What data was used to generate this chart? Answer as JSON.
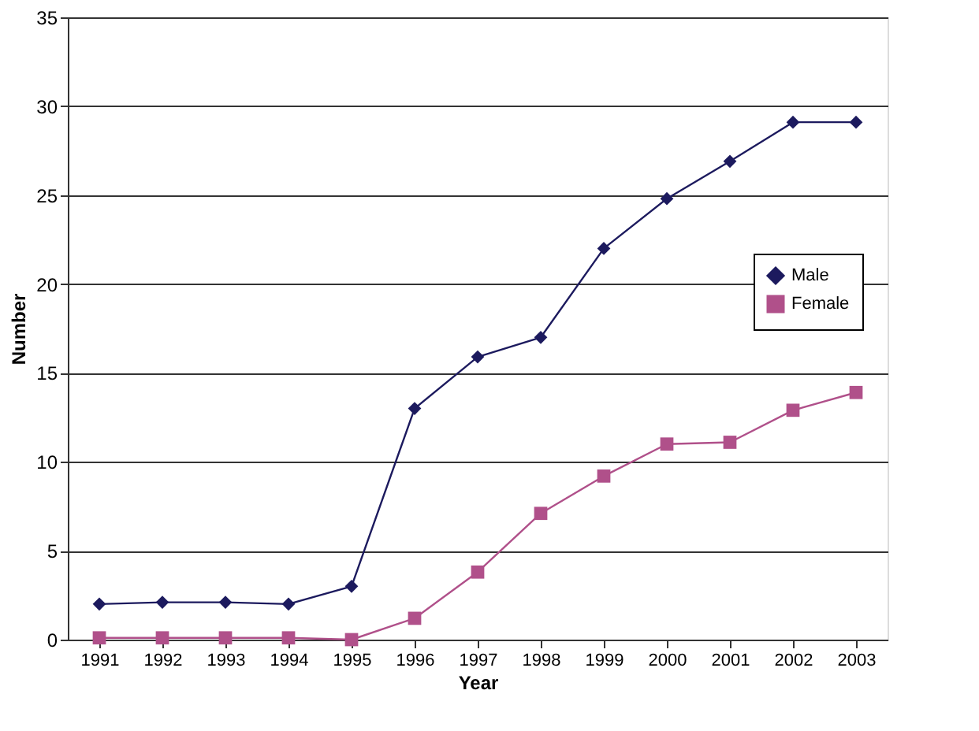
{
  "chart_data": {
    "type": "line",
    "xlabel": "Year",
    "ylabel": "Number",
    "categories": [
      "1991",
      "1992",
      "1993",
      "1994",
      "1995",
      "1996",
      "1997",
      "1998",
      "1999",
      "2000",
      "2001",
      "2002",
      "2003"
    ],
    "series": [
      {
        "name": "Male",
        "color": "#1c1a5e",
        "marker": "diamond",
        "values": [
          2,
          2.1,
          2.1,
          2,
          3,
          13,
          15.9,
          17,
          22,
          24.8,
          26.9,
          29.1,
          29.1
        ]
      },
      {
        "name": "Female",
        "color": "#b0508a",
        "marker": "square",
        "values": [
          0.1,
          0.1,
          0.1,
          0.1,
          0,
          1.2,
          3.8,
          7.1,
          9.2,
          11,
          11.1,
          12.9,
          13.9
        ]
      }
    ],
    "ylim": [
      0,
      35
    ],
    "yticks": [
      0,
      5,
      10,
      15,
      20,
      25,
      30,
      35
    ],
    "grid": "y",
    "legend": "right",
    "line_style": "solid"
  }
}
